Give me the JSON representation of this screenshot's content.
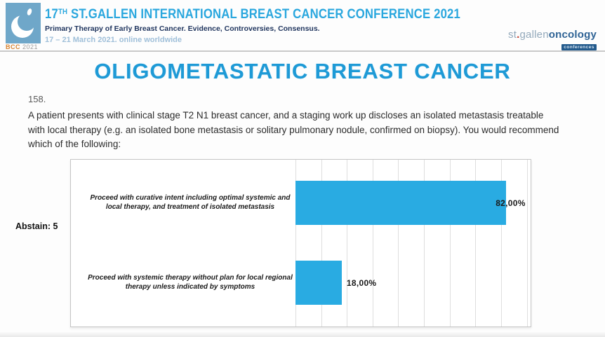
{
  "header": {
    "logo_bcc": "BCC",
    "logo_year": "2021",
    "conf_number": "17",
    "conf_ordinal": "TH",
    "conf_title_rest": " ST.GALLEN INTERNATIONAL BREAST CANCER CONFERENCE 2021",
    "conf_subtitle": "Primary Therapy of Early Breast Cancer. Evidence, Controversies, Consensus.",
    "conf_dates": "17 – 21 March 2021. online worldwide",
    "brand_st": "st",
    "brand_dot": ".",
    "brand_gallen": "gallen",
    "brand_oncology": "oncology",
    "brand_conferences": "conferences"
  },
  "slide": {
    "title": "OLIGOMETASTATIC BREAST CANCER",
    "question_number": "158.",
    "question_text": "A patient presents with clinical stage T2 N1 breast cancer, and a staging work up discloses an isolated metastasis treatable with local therapy (e.g. an isolated bone metastasis or solitary pulmonary nodule, confirmed on biopsy).  You would recommend which of the following:",
    "abstain_label": "Abstain: 5"
  },
  "chart_data": {
    "type": "bar",
    "orientation": "horizontal",
    "title": "",
    "categories": [
      "Proceed with curative intent including optimal systemic and local therapy, and treatment of isolated metastasis",
      "Proceed with systemic therapy without plan for local regional therapy unless indicated by symptoms"
    ],
    "values": [
      82,
      18
    ],
    "value_labels": [
      "82,00%",
      "18,00%"
    ],
    "abstain_count": 5,
    "xlim": [
      0,
      91.5
    ],
    "gridline_step_percent": 10,
    "grid": true,
    "legend": "none",
    "bar_color": "#29abe2"
  },
  "colors": {
    "bar": "#29abe2",
    "conference_cyan": "#2aa7de",
    "subtitle_navy": "#21365f",
    "dates_blue": "#9fbfd9",
    "slide_title_blue": "#1e9ad6",
    "bcc_orange": "#d6812f",
    "brand_gray_blue": "#93a9bb",
    "brand_oncology_blue": "#2f6395"
  }
}
